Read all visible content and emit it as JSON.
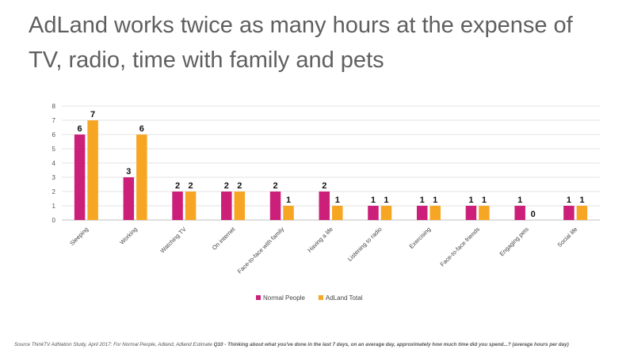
{
  "slide": {
    "title": "AdLand works twice as many hours at the expense of TV, radio, time with family and pets",
    "source_prefix": "Source ThinkTV AdNation Study, April 2017: For Normal People, Adland, Adland Estimate ",
    "source_bold": "Q10 - Thinking about what you've done in the last 7 days, on an average day, approximately how much time did you spend...? (average hours per day)"
  },
  "chart_data": {
    "type": "bar",
    "title": "",
    "xlabel": "",
    "ylabel": "",
    "ylim": [
      0,
      8
    ],
    "yticks": [
      0,
      1,
      2,
      3,
      4,
      5,
      6,
      7,
      8
    ],
    "grid": true,
    "legend_position": "bottom",
    "categories": [
      "Sleeping",
      "Working",
      "Watching TV",
      "On internet",
      "Face-to-face with family",
      "Having a life",
      "Listening to radio",
      "Exercising",
      "Face-to-face friends",
      "Engaging pets",
      "Social life"
    ],
    "series": [
      {
        "name": "Normal People",
        "color": "#cc1f7a",
        "values": [
          6,
          3,
          2,
          2,
          2,
          2,
          1,
          1,
          1,
          1,
          1
        ]
      },
      {
        "name": "AdLand Total",
        "color": "#f6a623",
        "values": [
          7,
          6,
          2,
          2,
          1,
          1,
          1,
          1,
          1,
          0,
          1
        ]
      }
    ]
  }
}
